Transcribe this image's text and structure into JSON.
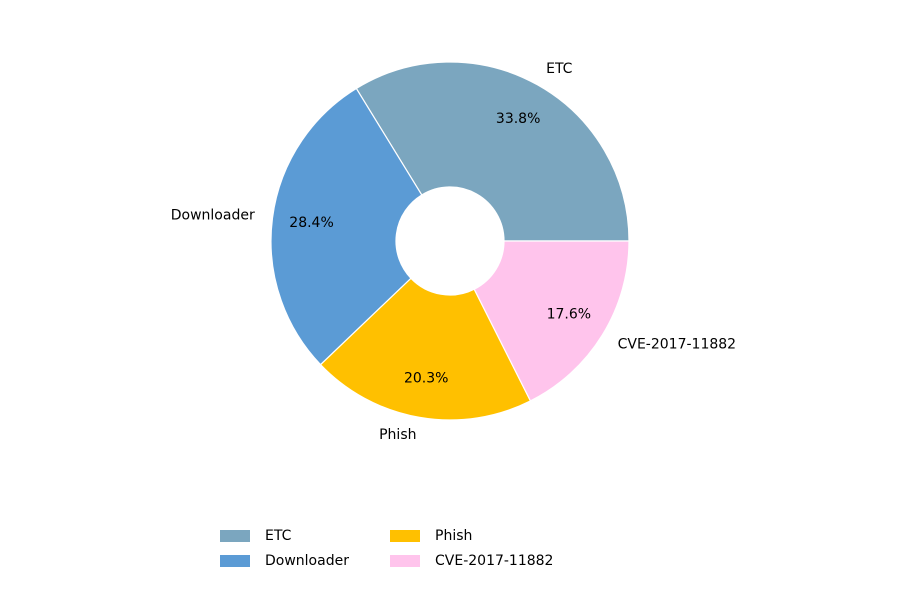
{
  "chart_data": {
    "type": "donut",
    "categories": [
      "ETC",
      "Downloader",
      "Phish",
      "CVE-2017-11882"
    ],
    "values": [
      33.8,
      28.4,
      20.3,
      17.6
    ],
    "value_labels": [
      "33.8%",
      "28.4%",
      "20.3%",
      "17.6%"
    ],
    "colors": [
      "#7ba6bf",
      "#5b9bd5",
      "#ffc000",
      "#ffc4ec"
    ],
    "legend": "bottom"
  }
}
